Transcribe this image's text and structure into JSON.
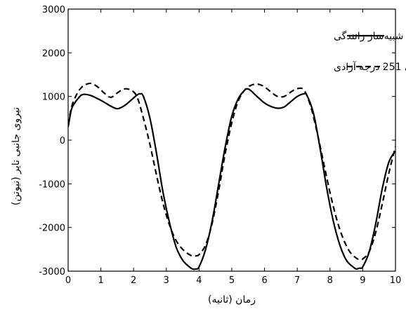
{
  "chart_data": {
    "type": "line",
    "title": "",
    "xlabel": "زمان (ثانیه)",
    "ylabel": "نیروی جانبی تایر (نیوتن)",
    "xlim": [
      0,
      10
    ],
    "ylim": [
      -3000,
      3000
    ],
    "xticks": [
      "0",
      "1",
      "2",
      "3",
      "4",
      "5",
      "6",
      "7",
      "8",
      "9",
      "10"
    ],
    "yticks": [
      "3000",
      "2000",
      "1000",
      "0",
      "-1000",
      "-2000",
      "-3000"
    ],
    "grid": false,
    "legend_position": "top-right",
    "series": [
      {
        "name": "مدل دینامیکی شبیه‌ساز رانندگی",
        "style": "solid",
        "color": "#000000",
        "x": [
          0,
          0.1,
          0.2,
          0.3,
          0.4,
          0.5,
          0.7,
          0.9,
          1.1,
          1.3,
          1.5,
          1.7,
          1.9,
          2.1,
          2.2,
          2.3,
          2.5,
          2.7,
          2.9,
          3.1,
          3.3,
          3.5,
          3.7,
          3.8,
          3.9,
          4.0,
          4.2,
          4.4,
          4.6,
          4.8,
          5.0,
          5.2,
          5.4,
          5.5,
          5.6,
          5.8,
          6.0,
          6.2,
          6.4,
          6.6,
          6.8,
          7.0,
          7.2,
          7.3,
          7.5,
          7.7,
          7.9,
          8.1,
          8.3,
          8.5,
          8.7,
          8.8,
          8.9,
          9.0,
          9.2,
          9.4,
          9.6,
          9.8,
          10.0
        ],
        "y": [
          300,
          700,
          850,
          950,
          1030,
          1050,
          1020,
          950,
          870,
          780,
          720,
          780,
          900,
          1030,
          1060,
          1000,
          500,
          -300,
          -1200,
          -1900,
          -2450,
          -2750,
          -2900,
          -2950,
          -2950,
          -2900,
          -2500,
          -1850,
          -1000,
          -150,
          550,
          950,
          1150,
          1170,
          1120,
          980,
          850,
          770,
          730,
          760,
          880,
          1000,
          1060,
          1020,
          600,
          -200,
          -1100,
          -1850,
          -2400,
          -2750,
          -2900,
          -2950,
          -2930,
          -2900,
          -2550,
          -1900,
          -1100,
          -500,
          -250
        ]
      },
      {
        "name": "مدل دینامیکی 251 درجه آزادی",
        "style": "dashed",
        "color": "#000000",
        "x": [
          0,
          0.1,
          0.2,
          0.3,
          0.4,
          0.5,
          0.7,
          0.9,
          1.1,
          1.3,
          1.5,
          1.7,
          1.9,
          2.1,
          2.3,
          2.5,
          2.7,
          2.9,
          3.1,
          3.3,
          3.5,
          3.7,
          3.8,
          3.9,
          4.0,
          4.2,
          4.4,
          4.6,
          4.8,
          5.0,
          5.2,
          5.4,
          5.6,
          5.8,
          6.0,
          6.2,
          6.4,
          6.6,
          6.8,
          7.0,
          7.2,
          7.4,
          7.6,
          7.8,
          8.0,
          8.2,
          8.4,
          8.6,
          8.8,
          8.9,
          9.0,
          9.2,
          9.4,
          9.6,
          9.8,
          10.0
        ],
        "y": [
          350,
          750,
          950,
          1100,
          1200,
          1260,
          1300,
          1220,
          1080,
          980,
          1080,
          1170,
          1150,
          1000,
          500,
          -100,
          -800,
          -1450,
          -1950,
          -2300,
          -2500,
          -2620,
          -2650,
          -2650,
          -2620,
          -2400,
          -1900,
          -1150,
          -300,
          400,
          900,
          1150,
          1260,
          1280,
          1220,
          1100,
          1000,
          1000,
          1100,
          1180,
          1150,
          800,
          200,
          -500,
          -1200,
          -1800,
          -2250,
          -2550,
          -2700,
          -2730,
          -2720,
          -2550,
          -2100,
          -1450,
          -750,
          -150
        ]
      }
    ]
  }
}
